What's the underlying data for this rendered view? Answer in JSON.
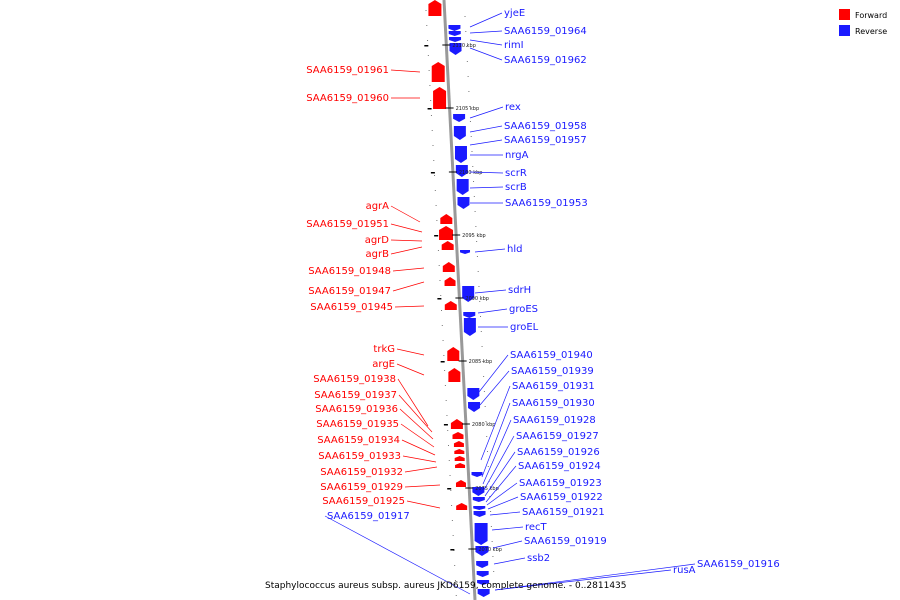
{
  "colors": {
    "forward": "#ff0000",
    "reverse": "#1a1aff",
    "backbone": "#999999"
  },
  "legend": [
    {
      "label": "Forward",
      "color": "#ff0000"
    },
    {
      "label": "Reverse",
      "color": "#1a1aff"
    }
  ],
  "caption": "Staphylococcus aureus subsp. aureus JKD6159, complete genome. - 0..2811435",
  "ticks": [
    "2110 kbp",
    "2105 kbp",
    "2100 kbp",
    "2095 kbp",
    "2090 kbp",
    "2085 kbp",
    "2080 kbp",
    "2075 kbp",
    "2070 kbp"
  ],
  "forward_genes": [
    "SAA6159_01961",
    "SAA6159_01960",
    "agrA",
    "SAA6159_01951",
    "agrD",
    "agrB",
    "SAA6159_01948",
    "SAA6159_01947",
    "SAA6159_01945",
    "trkG",
    "argE",
    "SAA6159_01938",
    "SAA6159_01937",
    "SAA6159_01936",
    "SAA6159_01935",
    "SAA6159_01934",
    "SAA6159_01933",
    "SAA6159_01932",
    "SAA6159_01929",
    "SAA6159_01925"
  ],
  "reverse_genes": [
    "yjeE",
    "SAA6159_01964",
    "rimI",
    "SAA6159_01962",
    "rex",
    "SAA6159_01958",
    "SAA6159_01957",
    "nrgA",
    "scrR",
    "scrB",
    "SAA6159_01953",
    "hld",
    "sdrH",
    "groES",
    "groEL",
    "SAA6159_01940",
    "SAA6159_01939",
    "SAA6159_01931",
    "SAA6159_01930",
    "SAA6159_01928",
    "SAA6159_01927",
    "SAA6159_01926",
    "SAA6159_01924",
    "SAA6159_01923",
    "SAA6159_01922",
    "SAA6159_01921",
    "recT",
    "SAA6159_01919",
    "ssb2",
    "rusA",
    "SAA6159_01916",
    "SAA6159_01917"
  ]
}
